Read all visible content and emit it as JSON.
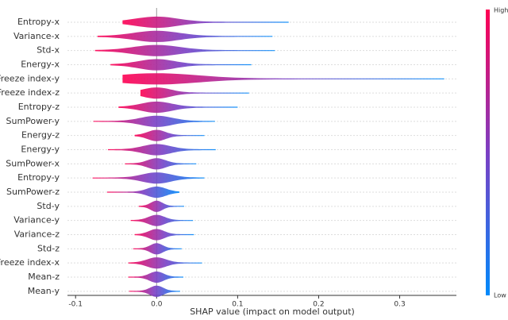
{
  "chart_data": {
    "type": "violin",
    "xlabel": "SHAP value (impact on model output)",
    "categories": [
      "Entropy-x",
      "Variance-x",
      "Std-x",
      "Energy-x",
      "Freeze index-y",
      "Freeze index-z",
      "Entropy-z",
      "SumPower-y",
      "Energy-z",
      "Energy-y",
      "SumPower-x",
      "Entropy-y",
      "SumPower-z",
      "Std-y",
      "Variance-y",
      "Variance-z",
      "Std-z",
      "Freeze index-x",
      "Mean-z",
      "Mean-y"
    ],
    "ranges": [
      [
        -0.042,
        0.163
      ],
      [
        -0.073,
        0.143
      ],
      [
        -0.076,
        0.146
      ],
      [
        -0.057,
        0.117
      ],
      [
        -0.042,
        0.355
      ],
      [
        -0.02,
        0.114
      ],
      [
        -0.047,
        0.1
      ],
      [
        -0.078,
        0.072
      ],
      [
        -0.027,
        0.059
      ],
      [
        -0.06,
        0.073
      ],
      [
        -0.039,
        0.049
      ],
      [
        -0.079,
        0.059
      ],
      [
        -0.061,
        0.028
      ],
      [
        -0.022,
        0.034
      ],
      [
        -0.032,
        0.045
      ],
      [
        -0.027,
        0.046
      ],
      [
        -0.029,
        0.031
      ],
      [
        -0.035,
        0.056
      ],
      [
        -0.035,
        0.033
      ],
      [
        -0.034,
        0.029
      ]
    ],
    "xlim": [
      -0.11,
      0.37
    ],
    "xticks": [
      -0.1,
      {
        "value": 0,
        "label": "0.0"
      },
      0.1,
      0.2,
      0.3
    ],
    "colormap": [
      "#ff0052",
      "#7b3fc4",
      "#008afb"
    ],
    "colorbar_labels": [
      "High",
      "Low"
    ]
  }
}
